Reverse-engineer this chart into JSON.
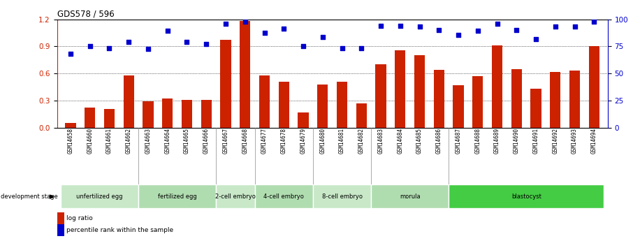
{
  "title": "GDS578 / 596",
  "samples": [
    "GSM14658",
    "GSM14660",
    "GSM14661",
    "GSM14662",
    "GSM14663",
    "GSM14664",
    "GSM14665",
    "GSM14666",
    "GSM14667",
    "GSM14668",
    "GSM14677",
    "GSM14678",
    "GSM14679",
    "GSM14680",
    "GSM14681",
    "GSM14682",
    "GSM14683",
    "GSM14684",
    "GSM14685",
    "GSM14686",
    "GSM14687",
    "GSM14688",
    "GSM14689",
    "GSM14690",
    "GSM14691",
    "GSM14692",
    "GSM14693",
    "GSM14694"
  ],
  "log_ratio": [
    0.05,
    0.22,
    0.21,
    0.58,
    0.29,
    0.32,
    0.31,
    0.31,
    0.97,
    1.18,
    0.58,
    0.51,
    0.17,
    0.48,
    0.51,
    0.27,
    0.7,
    0.86,
    0.8,
    0.64,
    0.47,
    0.57,
    0.91,
    0.65,
    0.43,
    0.62,
    0.63,
    0.9
  ],
  "percentile_rank": [
    0.82,
    0.9,
    0.88,
    0.95,
    0.87,
    1.07,
    0.95,
    0.93,
    1.15,
    1.17,
    1.05,
    1.1,
    0.9,
    1.0,
    0.88,
    0.88,
    1.13,
    1.13,
    1.12,
    1.08,
    1.03,
    1.07,
    1.15,
    1.08,
    0.98,
    1.12,
    1.12,
    1.17
  ],
  "stages": [
    {
      "label": "unfertilized egg",
      "start": 0,
      "end": 3
    },
    {
      "label": "fertilized egg",
      "start": 4,
      "end": 7
    },
    {
      "label": "2-cell embryo",
      "start": 8,
      "end": 9
    },
    {
      "label": "4-cell embryo",
      "start": 10,
      "end": 12
    },
    {
      "label": "8-cell embryo",
      "start": 13,
      "end": 15
    },
    {
      "label": "morula",
      "start": 16,
      "end": 19
    },
    {
      "label": "blastocyst",
      "start": 20,
      "end": 27
    }
  ],
  "stage_colors": [
    "#c8e8c8",
    "#b0ddb0",
    "#c8e8c8",
    "#b0ddb0",
    "#c8e8c8",
    "#b0ddb0",
    "#44cc44"
  ],
  "bar_color": "#cc2200",
  "dot_color": "#0000cc",
  "ylim_left": [
    0,
    1.2
  ],
  "ylim_right": [
    0,
    100
  ],
  "yticks_left": [
    0.0,
    0.3,
    0.6,
    0.9,
    1.2
  ],
  "yticks_right": [
    0,
    25,
    50,
    75,
    100
  ],
  "background_color": "#ffffff"
}
